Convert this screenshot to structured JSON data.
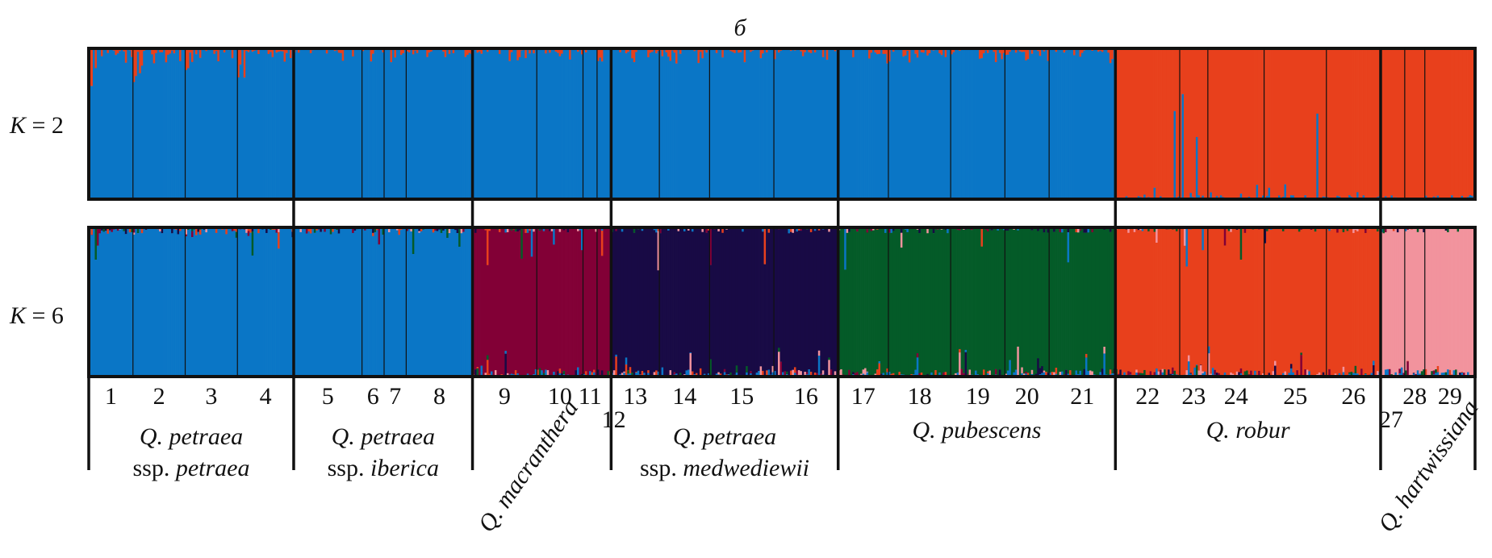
{
  "chart_data": {
    "type": "bar",
    "subtype": "stacked-admixture",
    "title": "б",
    "rows": [
      {
        "label_k": "K",
        "label_eq": " = 2",
        "k": 2
      },
      {
        "label_k": "K",
        "label_eq": " = 6",
        "k": 6
      }
    ],
    "populations": [
      {
        "label": "1",
        "n": 22,
        "group": 0
      },
      {
        "label": "2",
        "n": 26,
        "group": 0
      },
      {
        "label": "3",
        "n": 26,
        "group": 0
      },
      {
        "label": "4",
        "n": 28,
        "group": 0
      },
      {
        "label": "5",
        "n": 34,
        "group": 1
      },
      {
        "label": "6",
        "n": 11,
        "group": 1
      },
      {
        "label": "7",
        "n": 11,
        "group": 1
      },
      {
        "label": "8",
        "n": 33,
        "group": 1
      },
      {
        "label": "9",
        "n": 32,
        "group": 2
      },
      {
        "label": "10",
        "n": 23,
        "group": 2
      },
      {
        "label": "11",
        "n": 7,
        "group": 2
      },
      {
        "label": "12",
        "n": 7,
        "group": 2
      },
      {
        "label": "13",
        "n": 24,
        "group": 3
      },
      {
        "label": "14",
        "n": 25,
        "group": 3
      },
      {
        "label": "15",
        "n": 32,
        "group": 3
      },
      {
        "label": "16",
        "n": 32,
        "group": 3
      },
      {
        "label": "17",
        "n": 25,
        "group": 4
      },
      {
        "label": "18",
        "n": 31,
        "group": 4
      },
      {
        "label": "19",
        "n": 27,
        "group": 4
      },
      {
        "label": "20",
        "n": 22,
        "group": 4
      },
      {
        "label": "21",
        "n": 33,
        "group": 4
      },
      {
        "label": "22",
        "n": 32,
        "group": 5
      },
      {
        "label": "23",
        "n": 14,
        "group": 5
      },
      {
        "label": "24",
        "n": 28,
        "group": 5
      },
      {
        "label": "25",
        "n": 31,
        "group": 5
      },
      {
        "label": "26",
        "n": 27,
        "group": 5
      },
      {
        "label": "27",
        "n": 12,
        "group": 6
      },
      {
        "label": "28",
        "n": 10,
        "group": 6
      },
      {
        "label": "29",
        "n": 25,
        "group": 6
      }
    ],
    "groups": [
      {
        "name": "Q. petraea",
        "name2": "ssp. petraea",
        "name2_prefix": "ssp. ",
        "name2_italic": "petraea",
        "k2_cluster": "blue",
        "k6_cluster": "blue",
        "rotated": false
      },
      {
        "name": "Q. petraea",
        "name2": "ssp. iberica",
        "name2_prefix": "ssp. ",
        "name2_italic": "iberica",
        "k2_cluster": "blue",
        "k6_cluster": "blue",
        "rotated": false
      },
      {
        "name": "Q. macranthera",
        "name2": "",
        "name2_prefix": "",
        "name2_italic": "",
        "k2_cluster": "blue",
        "k6_cluster": "crimson",
        "rotated": true
      },
      {
        "name": "Q. petraea",
        "name2": "ssp. medwediewii",
        "name2_prefix": "ssp. ",
        "name2_italic": "medwediewii",
        "k2_cluster": "blue",
        "k6_cluster": "navy",
        "rotated": false
      },
      {
        "name": "Q. pubescens",
        "name2": "",
        "name2_prefix": "",
        "name2_italic": "",
        "k2_cluster": "blue",
        "k6_cluster": "green",
        "rotated": false
      },
      {
        "name": "Q. robur",
        "name2": "",
        "name2_prefix": "",
        "name2_italic": "",
        "k2_cluster": "red",
        "k6_cluster": "red",
        "rotated": false
      },
      {
        "name": "Q. hartwissiana",
        "name2": "",
        "name2_prefix": "",
        "name2_italic": "",
        "k2_cluster": "red",
        "k6_cluster": "pink",
        "rotated": true
      }
    ],
    "clusters": {
      "blue": "#0a76c6",
      "red": "#e8401c",
      "crimson": "#820036",
      "navy": "#180a45",
      "green": "#045b28",
      "pink": "#f2939d"
    },
    "ylim": [
      0,
      1
    ]
  }
}
